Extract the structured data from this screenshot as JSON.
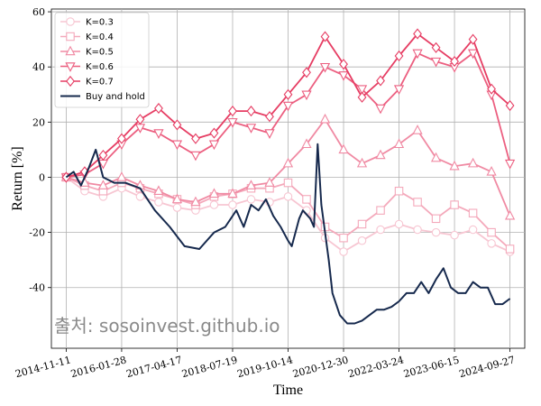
{
  "chart_data": {
    "type": "line",
    "title": "",
    "xlabel": "Time",
    "ylabel": "Return [%]",
    "ylim": [
      -62,
      61
    ],
    "yticks": [
      -40,
      -20,
      0,
      20,
      40,
      60
    ],
    "x_range_index": [
      0,
      120
    ],
    "x_tick_labels": [
      "2014-11-11",
      "2016-01-28",
      "2017-04-17",
      "2018-07-19",
      "2019-10-14",
      "2020-12-30",
      "2022-03-24",
      "2023-06-15",
      "2024-09-27"
    ],
    "x_tick_index": [
      0,
      15,
      30,
      45,
      60,
      75,
      90,
      105,
      120
    ],
    "grid": true,
    "legend_position": "top-left",
    "watermark": "출처: sosoinvest.github.io",
    "series": [
      {
        "name": "K=0.3",
        "color": "#f7c6d2",
        "marker": "circle",
        "x": [
          0,
          5,
          10,
          15,
          20,
          25,
          30,
          35,
          40,
          45,
          50,
          55,
          60,
          65,
          70,
          75,
          80,
          85,
          90,
          95,
          100,
          105,
          110,
          115,
          120
        ],
        "values": [
          0,
          -5,
          -7,
          -4,
          -7,
          -9,
          -11,
          -12,
          -10,
          -10,
          -8,
          -9,
          -7,
          -12,
          -22,
          -27,
          -23,
          -19,
          -17,
          -19,
          -20,
          -21,
          -19,
          -24,
          -27
        ]
      },
      {
        "name": "K=0.4",
        "color": "#f4a9bb",
        "marker": "square",
        "x": [
          0,
          5,
          10,
          15,
          20,
          25,
          30,
          35,
          40,
          45,
          50,
          55,
          60,
          65,
          70,
          75,
          80,
          85,
          90,
          95,
          100,
          105,
          110,
          115,
          120
        ],
        "values": [
          0,
          -3,
          -5,
          -2,
          -4,
          -6,
          -8,
          -10,
          -7,
          -6,
          -4,
          -4,
          -2,
          -8,
          -18,
          -22,
          -17,
          -12,
          -5,
          -9,
          -15,
          -10,
          -13,
          -20,
          -26
        ]
      },
      {
        "name": "K=0.5",
        "color": "#f08aa3",
        "marker": "triangle-up",
        "x": [
          0,
          5,
          10,
          15,
          20,
          25,
          30,
          35,
          40,
          45,
          50,
          55,
          60,
          65,
          70,
          75,
          80,
          85,
          90,
          95,
          100,
          105,
          110,
          115,
          120
        ],
        "values": [
          0,
          -2,
          -3,
          0,
          -3,
          -5,
          -8,
          -9,
          -6,
          -6,
          -3,
          -2,
          5,
          12,
          21,
          10,
          5,
          8,
          12,
          17,
          7,
          4,
          5,
          2,
          -14
        ]
      },
      {
        "name": "K=0.6",
        "color": "#ec5f80",
        "marker": "triangle-down",
        "x": [
          0,
          5,
          10,
          15,
          20,
          25,
          30,
          35,
          40,
          45,
          50,
          55,
          60,
          65,
          70,
          75,
          80,
          85,
          90,
          95,
          100,
          105,
          110,
          115,
          120
        ],
        "values": [
          0,
          1,
          5,
          12,
          18,
          16,
          12,
          8,
          12,
          20,
          18,
          16,
          26,
          30,
          40,
          37,
          32,
          25,
          32,
          45,
          42,
          40,
          45,
          30,
          5
        ]
      },
      {
        "name": "K=0.7",
        "color": "#e63d63",
        "marker": "diamond",
        "x": [
          0,
          5,
          10,
          15,
          20,
          25,
          30,
          35,
          40,
          45,
          50,
          55,
          60,
          65,
          70,
          75,
          80,
          85,
          90,
          95,
          100,
          105,
          110,
          115,
          120
        ],
        "values": [
          0,
          2,
          8,
          14,
          21,
          25,
          19,
          14,
          16,
          24,
          24,
          22,
          30,
          38,
          51,
          41,
          29,
          35,
          44,
          52,
          47,
          42,
          50,
          32,
          26
        ]
      },
      {
        "name": "Buy and hold",
        "color": "#16294d",
        "marker": "none",
        "x": [
          0,
          2,
          4,
          6,
          8,
          10,
          13,
          16,
          20,
          24,
          28,
          32,
          36,
          40,
          43,
          46,
          48,
          50,
          52,
          54,
          56,
          58,
          60,
          61,
          62,
          63,
          64,
          66,
          67,
          68,
          69,
          70,
          71,
          72,
          74,
          76,
          78,
          80,
          82,
          84,
          86,
          88,
          90,
          92,
          94,
          96,
          98,
          100,
          102,
          104,
          106,
          108,
          110,
          112,
          114,
          116,
          118,
          120
        ],
        "values": [
          0,
          2,
          -3,
          3,
          10,
          0,
          -2,
          -2,
          -4,
          -12,
          -18,
          -25,
          -26,
          -20,
          -18,
          -12,
          -18,
          -10,
          -12,
          -8,
          -14,
          -18,
          -23,
          -25,
          -20,
          -15,
          -12,
          -15,
          -18,
          12,
          -10,
          -20,
          -30,
          -42,
          -50,
          -53,
          -53,
          -52,
          -50,
          -48,
          -48,
          -47,
          -45,
          -42,
          -42,
          -38,
          -42,
          -37,
          -33,
          -40,
          -42,
          -42,
          -38,
          -40,
          -40,
          -46,
          -46,
          -44
        ]
      }
    ]
  }
}
